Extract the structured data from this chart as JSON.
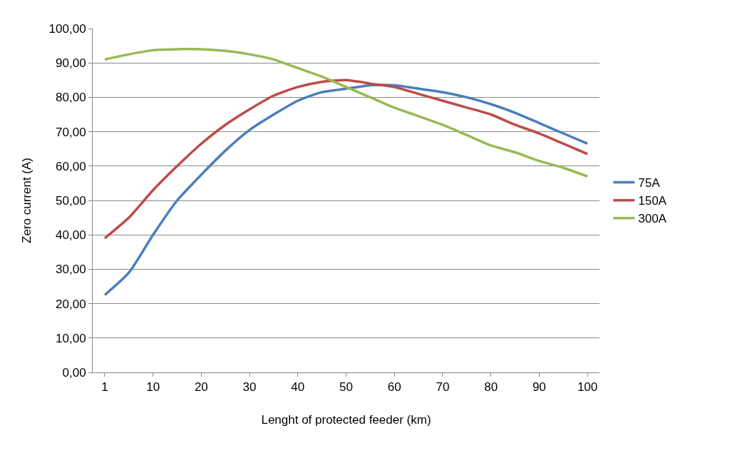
{
  "chart_data": {
    "type": "line",
    "xlabel": "Lenght of protected feeder (km)",
    "ylabel": "Zero current (A)",
    "categories": [
      "1",
      null,
      "10",
      null,
      "20",
      null,
      "30",
      null,
      "40",
      null,
      "50",
      null,
      "60",
      null,
      "70",
      null,
      "80",
      null,
      "90",
      null,
      "100"
    ],
    "series": [
      {
        "name": "75A",
        "color": "#4a7ebb",
        "values": [
          22.5,
          29,
          40,
          50,
          57.5,
          64.5,
          70.5,
          75,
          79,
          81.5,
          82.5,
          83.5,
          83.5,
          82.5,
          81.5,
          80,
          78,
          75.5,
          72.5,
          69.5,
          66.5
        ]
      },
      {
        "name": "150A",
        "color": "#be4b48",
        "values": [
          39,
          45,
          53,
          60,
          66.5,
          72,
          76.5,
          80.5,
          83,
          84.5,
          85,
          84,
          83,
          81,
          79,
          77,
          75,
          72,
          69.5,
          66.5,
          63.5
        ]
      },
      {
        "name": "300A",
        "color": "#98b954",
        "values": [
          91,
          92.5,
          93.7,
          94,
          94,
          93.5,
          92.5,
          91,
          88.5,
          86,
          83,
          80,
          77,
          74.5,
          72,
          69,
          66,
          64,
          61.5,
          59.5,
          57
        ]
      }
    ],
    "ylim": [
      0,
      100
    ],
    "yticks": [
      {
        "value": 0,
        "label": "0,00"
      },
      {
        "value": 10,
        "label": "10,00"
      },
      {
        "value": 20,
        "label": "20,00"
      },
      {
        "value": 30,
        "label": "30,00"
      },
      {
        "value": 40,
        "label": "40,00"
      },
      {
        "value": 50,
        "label": "50,00"
      },
      {
        "value": 60,
        "label": "60,00"
      },
      {
        "value": 70,
        "label": "70,00"
      },
      {
        "value": 80,
        "label": "80,00"
      },
      {
        "value": 90,
        "label": "90,00"
      },
      {
        "value": 100,
        "label": "100,00"
      }
    ],
    "grid": "y",
    "legend": "right",
    "marker": "none",
    "line_style": "solid"
  }
}
